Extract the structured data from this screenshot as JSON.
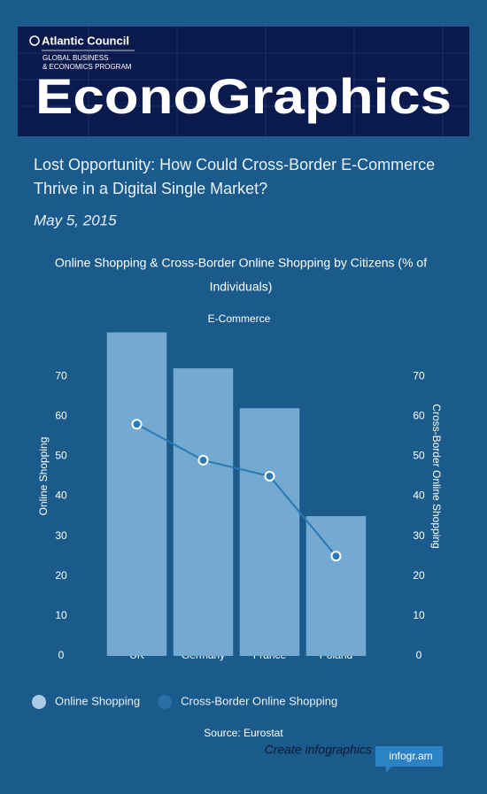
{
  "header": {
    "org": "Atlantic Council",
    "program": [
      "GLOBAL BUSINESS",
      "& ECONOMICS PROGRAM"
    ],
    "brand": "EconoGraphics"
  },
  "headline": [
    "Lost Opportunity: How Could Cross-Border E-Commerce",
    "Thrive in a Digital Single Market?"
  ],
  "date": "May 5, 2015",
  "chart_data": {
    "type": "bar",
    "title": [
      "Online Shopping & Cross-Border Online Shopping by Citizens (% of",
      "Individuals)"
    ],
    "subtitle": "E-Commerce",
    "categories": [
      "UK",
      "Germany",
      "France",
      "Poland"
    ],
    "series": [
      {
        "name": "Online Shopping",
        "type": "bar",
        "color": "#74a9d1",
        "legend_color": "#a9cbe6",
        "values": [
          81,
          72,
          62,
          35
        ]
      },
      {
        "name": "Cross-Border Online Shopping",
        "type": "line",
        "axis": "y2",
        "color": "#2b79b5",
        "legend_color": "#2a6fa8",
        "values": [
          58,
          49,
          45,
          25
        ]
      }
    ],
    "ylabel": "Online Shopping",
    "y2label": "Cross-Border Online Shopping",
    "ylim": [
      0,
      82
    ],
    "yticks": [
      0,
      10,
      20,
      30,
      40,
      50,
      60,
      70
    ],
    "y2lim": [
      0,
      82
    ],
    "y2ticks": [
      0,
      10,
      20,
      30,
      40,
      50,
      60,
      70
    ],
    "grid": false,
    "legend": "bottom-left",
    "source": "Source: Eurostat"
  },
  "footer": {
    "cta": "Create infographics",
    "brand": "infogr.am"
  }
}
